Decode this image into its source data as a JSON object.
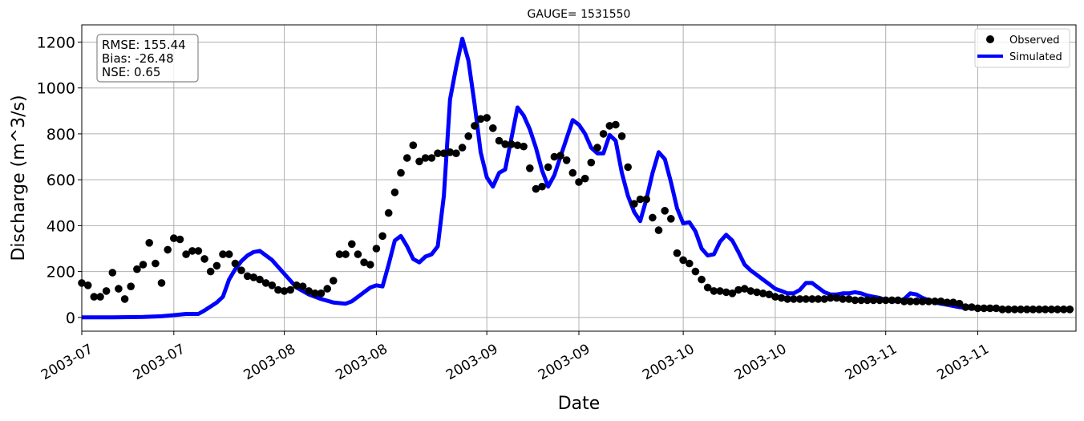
{
  "chart_data": {
    "type": "line",
    "title": "GAUGE= 1531550",
    "xlabel": "Date",
    "ylabel": "Discharge (m^3/s)",
    "x_range_days": [
      0,
      162
    ],
    "ylim": [
      -60,
      1275
    ],
    "yticks": [
      0,
      200,
      400,
      600,
      800,
      1000,
      1200
    ],
    "xticks": [
      {
        "day": 0,
        "label": "2003-07"
      },
      {
        "day": 15,
        "label": "2003-07"
      },
      {
        "day": 33,
        "label": "2003-08"
      },
      {
        "day": 48,
        "label": "2003-08"
      },
      {
        "day": 66,
        "label": "2003-09"
      },
      {
        "day": 81,
        "label": "2003-09"
      },
      {
        "day": 98,
        "label": "2003-10"
      },
      {
        "day": 113,
        "label": "2003-10"
      },
      {
        "day": 131,
        "label": "2003-11"
      },
      {
        "day": 146,
        "label": "2003-11"
      }
    ],
    "grid": true,
    "legend": {
      "position": "top-right",
      "entries": [
        {
          "name": "Observed",
          "style": "markers",
          "color": "#000000"
        },
        {
          "name": "Simulated",
          "style": "line",
          "color": "#0000ff"
        }
      ]
    },
    "stats": [
      "RMSE: 155.44",
      "Bias: -26.48",
      "NSE: 0.65"
    ],
    "series": [
      {
        "name": "Observed",
        "type": "scatter",
        "color": "#000000",
        "values": [
          [
            0,
            150
          ],
          [
            1,
            140
          ],
          [
            2,
            90
          ],
          [
            3,
            90
          ],
          [
            4,
            115
          ],
          [
            5,
            195
          ],
          [
            6,
            125
          ],
          [
            7,
            80
          ],
          [
            8,
            135
          ],
          [
            9,
            210
          ],
          [
            10,
            230
          ],
          [
            11,
            325
          ],
          [
            12,
            235
          ],
          [
            13,
            150
          ],
          [
            14,
            295
          ],
          [
            15,
            345
          ],
          [
            16,
            340
          ],
          [
            17,
            275
          ],
          [
            18,
            290
          ],
          [
            19,
            290
          ],
          [
            20,
            255
          ],
          [
            21,
            200
          ],
          [
            22,
            225
          ],
          [
            23,
            275
          ],
          [
            24,
            275
          ],
          [
            25,
            235
          ],
          [
            26,
            205
          ],
          [
            27,
            180
          ],
          [
            28,
            175
          ],
          [
            29,
            165
          ],
          [
            30,
            150
          ],
          [
            31,
            140
          ],
          [
            32,
            120
          ],
          [
            33,
            115
          ],
          [
            34,
            120
          ],
          [
            35,
            140
          ],
          [
            36,
            135
          ],
          [
            37,
            115
          ],
          [
            38,
            105
          ],
          [
            39,
            105
          ],
          [
            40,
            125
          ],
          [
            41,
            160
          ],
          [
            42,
            275
          ],
          [
            43,
            275
          ],
          [
            44,
            320
          ],
          [
            45,
            275
          ],
          [
            46,
            240
          ],
          [
            47,
            230
          ],
          [
            48,
            300
          ],
          [
            49,
            355
          ],
          [
            50,
            455
          ],
          [
            51,
            545
          ],
          [
            52,
            630
          ],
          [
            53,
            695
          ],
          [
            54,
            750
          ],
          [
            55,
            680
          ],
          [
            56,
            695
          ],
          [
            57,
            695
          ],
          [
            58,
            715
          ],
          [
            59,
            715
          ],
          [
            60,
            720
          ],
          [
            61,
            715
          ],
          [
            62,
            740
          ],
          [
            63,
            790
          ],
          [
            64,
            835
          ],
          [
            65,
            865
          ],
          [
            66,
            870
          ],
          [
            67,
            825
          ],
          [
            68,
            770
          ],
          [
            69,
            755
          ],
          [
            70,
            755
          ],
          [
            71,
            750
          ],
          [
            72,
            745
          ],
          [
            73,
            650
          ],
          [
            74,
            560
          ],
          [
            75,
            570
          ],
          [
            76,
            655
          ],
          [
            77,
            700
          ],
          [
            78,
            705
          ],
          [
            79,
            685
          ],
          [
            80,
            630
          ],
          [
            81,
            590
          ],
          [
            82,
            605
          ],
          [
            83,
            675
          ],
          [
            84,
            740
          ],
          [
            85,
            800
          ],
          [
            86,
            835
          ],
          [
            87,
            840
          ],
          [
            88,
            790
          ],
          [
            89,
            655
          ],
          [
            90,
            495
          ],
          [
            91,
            515
          ],
          [
            92,
            515
          ],
          [
            93,
            435
          ],
          [
            94,
            380
          ],
          [
            95,
            465
          ],
          [
            96,
            430
          ],
          [
            97,
            280
          ],
          [
            98,
            250
          ],
          [
            99,
            235
          ],
          [
            100,
            200
          ],
          [
            101,
            165
          ],
          [
            102,
            130
          ],
          [
            103,
            115
          ],
          [
            104,
            115
          ],
          [
            105,
            110
          ],
          [
            106,
            105
          ],
          [
            107,
            120
          ],
          [
            108,
            125
          ],
          [
            109,
            115
          ],
          [
            110,
            110
          ],
          [
            111,
            105
          ],
          [
            112,
            100
          ],
          [
            113,
            90
          ],
          [
            114,
            85
          ],
          [
            115,
            80
          ],
          [
            116,
            80
          ],
          [
            117,
            80
          ],
          [
            118,
            80
          ],
          [
            119,
            80
          ],
          [
            120,
            80
          ],
          [
            121,
            80
          ],
          [
            122,
            85
          ],
          [
            123,
            85
          ],
          [
            124,
            80
          ],
          [
            125,
            80
          ],
          [
            126,
            75
          ],
          [
            127,
            75
          ],
          [
            128,
            75
          ],
          [
            129,
            75
          ],
          [
            130,
            75
          ],
          [
            131,
            75
          ],
          [
            132,
            75
          ],
          [
            133,
            75
          ],
          [
            134,
            70
          ],
          [
            135,
            70
          ],
          [
            136,
            70
          ],
          [
            137,
            70
          ],
          [
            138,
            70
          ],
          [
            139,
            70
          ],
          [
            140,
            70
          ],
          [
            141,
            65
          ],
          [
            142,
            65
          ],
          [
            143,
            60
          ],
          [
            144,
            45
          ],
          [
            145,
            45
          ],
          [
            146,
            40
          ],
          [
            147,
            40
          ],
          [
            148,
            40
          ],
          [
            149,
            40
          ],
          [
            150,
            35
          ],
          [
            151,
            35
          ],
          [
            152,
            35
          ],
          [
            153,
            35
          ],
          [
            154,
            35
          ],
          [
            155,
            35
          ],
          [
            156,
            35
          ],
          [
            157,
            35
          ],
          [
            158,
            35
          ],
          [
            159,
            35
          ],
          [
            160,
            35
          ],
          [
            161,
            35
          ]
        ]
      },
      {
        "name": "Simulated",
        "type": "line",
        "color": "#0000ff",
        "values": [
          [
            0,
            0
          ],
          [
            5,
            0
          ],
          [
            10,
            2
          ],
          [
            13,
            5
          ],
          [
            15,
            10
          ],
          [
            17,
            15
          ],
          [
            19,
            15
          ],
          [
            20,
            30
          ],
          [
            22,
            65
          ],
          [
            23,
            90
          ],
          [
            24,
            165
          ],
          [
            25,
            210
          ],
          [
            26,
            245
          ],
          [
            27,
            270
          ],
          [
            28,
            285
          ],
          [
            29,
            290
          ],
          [
            31,
            250
          ],
          [
            32,
            220
          ],
          [
            34,
            160
          ],
          [
            35,
            130
          ],
          [
            37,
            100
          ],
          [
            39,
            80
          ],
          [
            41,
            65
          ],
          [
            43,
            60
          ],
          [
            44,
            70
          ],
          [
            45,
            90
          ],
          [
            46,
            110
          ],
          [
            47,
            130
          ],
          [
            48,
            140
          ],
          [
            49,
            135
          ],
          [
            50,
            230
          ],
          [
            51,
            335
          ],
          [
            52,
            355
          ],
          [
            53,
            310
          ],
          [
            54,
            255
          ],
          [
            55,
            240
          ],
          [
            56,
            265
          ],
          [
            57,
            275
          ],
          [
            58,
            310
          ],
          [
            59,
            530
          ],
          [
            60,
            950
          ],
          [
            61,
            1090
          ],
          [
            62,
            1215
          ],
          [
            63,
            1120
          ],
          [
            64,
            930
          ],
          [
            65,
            720
          ],
          [
            66,
            610
          ],
          [
            67,
            570
          ],
          [
            68,
            630
          ],
          [
            69,
            645
          ],
          [
            70,
            780
          ],
          [
            71,
            915
          ],
          [
            72,
            880
          ],
          [
            73,
            820
          ],
          [
            74,
            740
          ],
          [
            75,
            640
          ],
          [
            76,
            570
          ],
          [
            77,
            620
          ],
          [
            78,
            700
          ],
          [
            79,
            780
          ],
          [
            80,
            860
          ],
          [
            81,
            840
          ],
          [
            82,
            800
          ],
          [
            83,
            740
          ],
          [
            84,
            715
          ],
          [
            85,
            715
          ],
          [
            86,
            795
          ],
          [
            87,
            770
          ],
          [
            88,
            630
          ],
          [
            89,
            530
          ],
          [
            90,
            460
          ],
          [
            91,
            420
          ],
          [
            92,
            515
          ],
          [
            93,
            630
          ],
          [
            94,
            720
          ],
          [
            95,
            690
          ],
          [
            96,
            590
          ],
          [
            97,
            475
          ],
          [
            98,
            410
          ],
          [
            99,
            415
          ],
          [
            100,
            375
          ],
          [
            101,
            300
          ],
          [
            102,
            270
          ],
          [
            103,
            275
          ],
          [
            104,
            330
          ],
          [
            105,
            360
          ],
          [
            106,
            335
          ],
          [
            107,
            285
          ],
          [
            108,
            230
          ],
          [
            109,
            205
          ],
          [
            110,
            185
          ],
          [
            111,
            165
          ],
          [
            112,
            145
          ],
          [
            113,
            125
          ],
          [
            114,
            115
          ],
          [
            115,
            105
          ],
          [
            116,
            105
          ],
          [
            117,
            120
          ],
          [
            118,
            150
          ],
          [
            119,
            150
          ],
          [
            120,
            130
          ],
          [
            121,
            110
          ],
          [
            122,
            100
          ],
          [
            123,
            100
          ],
          [
            124,
            105
          ],
          [
            125,
            105
          ],
          [
            126,
            110
          ],
          [
            127,
            105
          ],
          [
            128,
            95
          ],
          [
            129,
            90
          ],
          [
            130,
            85
          ],
          [
            131,
            75
          ],
          [
            132,
            70
          ],
          [
            133,
            70
          ],
          [
            134,
            80
          ],
          [
            135,
            105
          ],
          [
            136,
            100
          ],
          [
            137,
            85
          ],
          [
            138,
            75
          ],
          [
            139,
            65
          ],
          [
            140,
            60
          ],
          [
            141,
            55
          ],
          [
            142,
            50
          ],
          [
            143,
            45
          ],
          [
            144,
            42
          ],
          [
            145,
            40
          ],
          [
            146,
            38
          ],
          [
            147,
            37
          ],
          [
            148,
            36
          ],
          [
            149,
            35
          ],
          [
            150,
            35
          ],
          [
            155,
            33
          ],
          [
            161,
            33
          ]
        ]
      }
    ]
  }
}
